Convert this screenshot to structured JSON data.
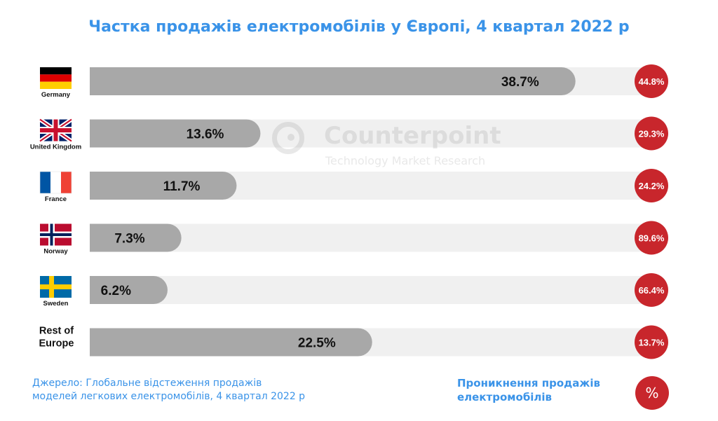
{
  "chart_data": {
    "type": "bar",
    "orientation": "horizontal",
    "title": "Частка продажів електромобілів у Європі, 4 квартал 2022 р",
    "categories": [
      "Germany",
      "United Kingdom",
      "France",
      "Norway",
      "Sweden",
      "Rest of Europe"
    ],
    "series": [
      {
        "values": [
          38.7,
          13.6,
          11.7,
          7.3,
          6.2,
          22.5
        ]
      },
      {
        "name": "Проникнення продажів електромобілів",
        "values": [
          44.8,
          29.3,
          24.2,
          89.6,
          66.4,
          13.7
        ]
      }
    ],
    "value_labels": [
      "38.7%",
      "13.6%",
      "11.7%",
      "7.3%",
      "6.2%",
      "22.5%"
    ],
    "penetration_labels": [
      "44.8%",
      "29.3%",
      "24.2%",
      "89.6%",
      "66.4%",
      "13.7%"
    ],
    "grid": false,
    "legend": {
      "position": "bottom-right",
      "label": "Проникнення продажів електромобілів",
      "symbol": "%"
    },
    "colors": {
      "bar": "#a8a8a8",
      "track": "#f0f0f0",
      "circle": "#c8262c",
      "accent": "#3a93e8"
    }
  },
  "flags": [
    "germany",
    "united-kingdom",
    "france",
    "norway",
    "sweden",
    null
  ],
  "watermark": {
    "name": "Counterpoint",
    "tagline": "Technology Market Research"
  },
  "source": {
    "line1": "Джерело: Глобальне відстеження продажів",
    "line2": "моделей легкових електромобілів, 4 квартал 2022 р"
  }
}
